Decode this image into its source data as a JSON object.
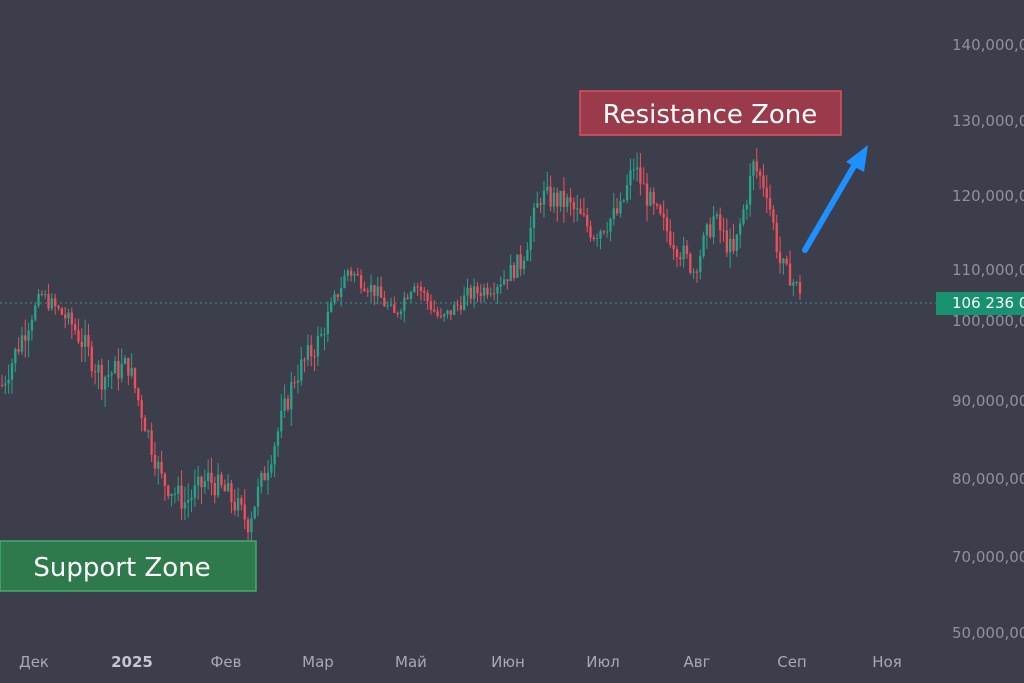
{
  "chart_data": {
    "type": "candlestick",
    "y_axis": {
      "ticks": [
        {
          "value": 140000,
          "label": "140,000,0"
        },
        {
          "value": 130000,
          "label": "130,000,0"
        },
        {
          "value": 120000,
          "label": "120,000,0"
        },
        {
          "value": 110000,
          "label": "110,000,0"
        },
        {
          "value": 100000,
          "label": "100,000,0"
        },
        {
          "value": 90000,
          "label": "90,000,00"
        },
        {
          "value": 80000,
          "label": "80,000,00"
        },
        {
          "value": 70000,
          "label": "70,000,00"
        },
        {
          "value": 50000,
          "label": "50,000,00"
        }
      ]
    },
    "x_axis": {
      "ticks": [
        {
          "label": "Дек",
          "bold": false
        },
        {
          "label": "2025",
          "bold": true
        },
        {
          "label": "Фев",
          "bold": false
        },
        {
          "label": "Мар",
          "bold": false
        },
        {
          "label": "Май",
          "bold": false
        },
        {
          "label": "Июн",
          "bold": false
        },
        {
          "label": "Июл",
          "bold": false
        },
        {
          "label": "Авг",
          "bold": false
        },
        {
          "label": "Сеп",
          "bold": false
        },
        {
          "label": "Ноя",
          "bold": false
        }
      ]
    },
    "path": [
      {
        "i": 0,
        "price": 92000
      },
      {
        "i": 8,
        "price": 100000
      },
      {
        "i": 12,
        "price": 105000
      },
      {
        "i": 22,
        "price": 99000
      },
      {
        "i": 30,
        "price": 93000
      },
      {
        "i": 38,
        "price": 94500
      },
      {
        "i": 48,
        "price": 80000
      },
      {
        "i": 55,
        "price": 77000
      },
      {
        "i": 62,
        "price": 80000
      },
      {
        "i": 68,
        "price": 78000
      },
      {
        "i": 74,
        "price": 74500
      },
      {
        "i": 80,
        "price": 82000
      },
      {
        "i": 88,
        "price": 93000
      },
      {
        "i": 96,
        "price": 98000
      },
      {
        "i": 104,
        "price": 110000
      },
      {
        "i": 112,
        "price": 106000
      },
      {
        "i": 118,
        "price": 101000
      },
      {
        "i": 124,
        "price": 108000
      },
      {
        "i": 132,
        "price": 100000
      },
      {
        "i": 140,
        "price": 105000
      },
      {
        "i": 148,
        "price": 107000
      },
      {
        "i": 156,
        "price": 111000
      },
      {
        "i": 162,
        "price": 120000
      },
      {
        "i": 170,
        "price": 119000
      },
      {
        "i": 178,
        "price": 115000
      },
      {
        "i": 186,
        "price": 118000
      },
      {
        "i": 190,
        "price": 124000
      },
      {
        "i": 196,
        "price": 118000
      },
      {
        "i": 202,
        "price": 114000
      },
      {
        "i": 208,
        "price": 110000
      },
      {
        "i": 214,
        "price": 117000
      },
      {
        "i": 220,
        "price": 112000
      },
      {
        "i": 226,
        "price": 124000
      },
      {
        "i": 230,
        "price": 121000
      },
      {
        "i": 234,
        "price": 111000
      },
      {
        "i": 240,
        "price": 106000
      }
    ],
    "current_price": {
      "value": 106236,
      "label": "106 236 0"
    },
    "annotations": [
      {
        "text": "Resistance Zone",
        "color": "#9b3a4a",
        "border": "#e05060"
      },
      {
        "text": "Support Zone",
        "color": "#2f7a4c",
        "border": "#3fae68"
      }
    ],
    "colors": {
      "up": "#26a38a",
      "down": "#ef4f5a",
      "arrow": "#1e90ff",
      "price_tag": "#17916f",
      "background": "#3d3e4c"
    }
  }
}
